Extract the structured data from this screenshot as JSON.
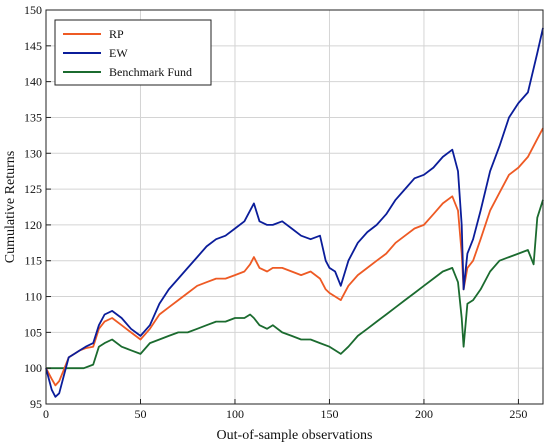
{
  "chart_data": {
    "type": "line",
    "xlabel": "Out-of-sample observations",
    "ylabel": "Cumulative Returns",
    "xlim": [
      0,
      263
    ],
    "ylim": [
      95,
      150
    ],
    "xticks": [
      0,
      50,
      100,
      150,
      200,
      250
    ],
    "yticks": [
      95,
      100,
      105,
      110,
      115,
      120,
      125,
      130,
      135,
      140,
      145,
      150
    ],
    "grid": true,
    "legend_position": "top-left",
    "series": [
      {
        "name": "RP",
        "color": "#ee5a24",
        "x": [
          0,
          3,
          5,
          7,
          9,
          12,
          15,
          18,
          21,
          25,
          28,
          31,
          35,
          40,
          45,
          50,
          55,
          60,
          65,
          70,
          75,
          80,
          85,
          90,
          95,
          100,
          105,
          108,
          110,
          113,
          117,
          120,
          125,
          130,
          135,
          140,
          145,
          148,
          150,
          153,
          156,
          160,
          165,
          170,
          175,
          180,
          185,
          190,
          195,
          200,
          205,
          210,
          215,
          218,
          220,
          221,
          223,
          226,
          230,
          235,
          240,
          245,
          250,
          255,
          260,
          263
        ],
        "y": [
          100,
          98.5,
          97.6,
          98.2,
          99.5,
          101.5,
          102.0,
          102.5,
          102.8,
          103.0,
          105.5,
          106.5,
          107.0,
          106.0,
          105.0,
          104.0,
          105.5,
          107.5,
          108.5,
          109.5,
          110.5,
          111.5,
          112.0,
          112.5,
          112.5,
          113.0,
          113.5,
          114.5,
          115.5,
          114.0,
          113.5,
          114.0,
          114.0,
          113.5,
          113.0,
          113.5,
          112.5,
          111.0,
          110.5,
          110.0,
          109.5,
          111.5,
          113.0,
          114.0,
          115.0,
          116.0,
          117.5,
          118.5,
          119.5,
          120.0,
          121.5,
          123.0,
          124.0,
          122.0,
          116.0,
          111.0,
          114.0,
          115.0,
          118.0,
          122.0,
          124.5,
          127.0,
          128.0,
          129.5,
          132.0,
          133.5
        ]
      },
      {
        "name": "EW",
        "color": "#0b1d9a",
        "x": [
          0,
          3,
          5,
          7,
          9,
          12,
          15,
          18,
          21,
          25,
          28,
          31,
          35,
          40,
          45,
          50,
          55,
          60,
          65,
          70,
          75,
          80,
          85,
          90,
          95,
          100,
          105,
          108,
          110,
          113,
          117,
          120,
          125,
          130,
          135,
          140,
          145,
          148,
          150,
          153,
          156,
          160,
          165,
          170,
          175,
          180,
          185,
          190,
          195,
          200,
          205,
          210,
          215,
          218,
          220,
          221,
          223,
          226,
          230,
          235,
          240,
          245,
          250,
          255,
          260,
          263
        ],
        "y": [
          100,
          97.0,
          96.0,
          96.5,
          98.5,
          101.5,
          102.0,
          102.5,
          103.0,
          103.5,
          106.0,
          107.5,
          108.0,
          107.0,
          105.5,
          104.5,
          106.0,
          109.0,
          111.0,
          112.5,
          114.0,
          115.5,
          117.0,
          118.0,
          118.5,
          119.5,
          120.5,
          122.0,
          123.0,
          120.5,
          120.0,
          120.0,
          120.5,
          119.5,
          118.5,
          118.0,
          118.5,
          115.0,
          114.0,
          113.5,
          111.5,
          115.0,
          117.5,
          119.0,
          120.0,
          121.5,
          123.5,
          125.0,
          126.5,
          127.0,
          128.0,
          129.5,
          130.5,
          127.5,
          120.0,
          111.0,
          116.0,
          118.0,
          122.0,
          127.5,
          131.0,
          135.0,
          137.0,
          138.5,
          144.0,
          147.5
        ]
      },
      {
        "name": "Benchmark Fund",
        "color": "#1b6b2f",
        "x": [
          0,
          10,
          20,
          25,
          28,
          31,
          35,
          40,
          45,
          50,
          55,
          60,
          65,
          70,
          75,
          80,
          85,
          90,
          95,
          100,
          105,
          108,
          110,
          113,
          117,
          120,
          125,
          130,
          135,
          140,
          145,
          150,
          153,
          156,
          160,
          165,
          170,
          175,
          180,
          185,
          190,
          195,
          200,
          205,
          210,
          215,
          218,
          220,
          221,
          223,
          226,
          230,
          235,
          240,
          245,
          250,
          255,
          258,
          260,
          263
        ],
        "y": [
          100,
          100,
          100,
          100.5,
          103.0,
          103.5,
          104.0,
          103.0,
          102.5,
          102.0,
          103.5,
          104.0,
          104.5,
          105.0,
          105.0,
          105.5,
          106.0,
          106.5,
          106.5,
          107.0,
          107.0,
          107.5,
          107.0,
          106.0,
          105.5,
          106.0,
          105.0,
          104.5,
          104.0,
          104.0,
          103.5,
          103.0,
          102.5,
          102.0,
          103.0,
          104.5,
          105.5,
          106.5,
          107.5,
          108.5,
          109.5,
          110.5,
          111.5,
          112.5,
          113.5,
          114.0,
          112.0,
          107.0,
          103.0,
          109.0,
          109.5,
          111.0,
          113.5,
          115.0,
          115.5,
          116.0,
          116.5,
          114.5,
          121.0,
          123.5
        ]
      }
    ]
  }
}
